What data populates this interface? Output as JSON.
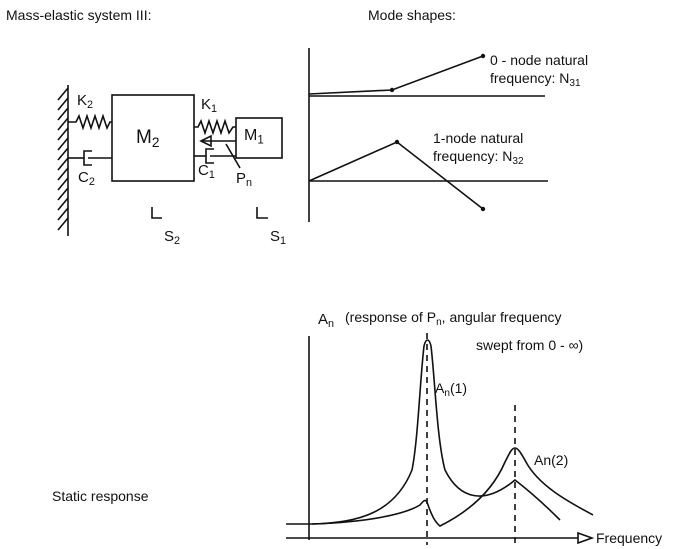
{
  "left_title": "Mass-elastic system III:",
  "right_title": "Mode shapes:",
  "system": {
    "k2": {
      "base": "K",
      "sub": "2"
    },
    "k1": {
      "base": "K",
      "sub": "1"
    },
    "m2": {
      "base": "M",
      "sub": "2"
    },
    "m1": {
      "base": "M",
      "sub": "1"
    },
    "c2": {
      "base": "C",
      "sub": "2"
    },
    "c1": {
      "base": "C",
      "sub": "1"
    },
    "pn": {
      "base": "P",
      "sub": "n"
    },
    "s2": {
      "base": "S",
      "sub": "2"
    },
    "s1": {
      "base": "S",
      "sub": "1"
    }
  },
  "modes": {
    "mode0": {
      "line1": "0 - node natural",
      "line2": "frequency: N",
      "sub": "31"
    },
    "mode1": {
      "line1": "1-node natural",
      "line2": "frequency: N",
      "sub": "32"
    }
  },
  "response": {
    "ylabel_base": "A",
    "ylabel_sub": "n",
    "note1_pre": "(response of P",
    "note1_sub": "n",
    "note1_post": ", angular frequency",
    "note2": "swept from 0 - ∞)",
    "peak1_base": "A",
    "peak1_sub": "n",
    "peak1_post": "(1)",
    "peak2": "An(2)",
    "xlabel": "Frequency",
    "static_label": "Static response"
  }
}
